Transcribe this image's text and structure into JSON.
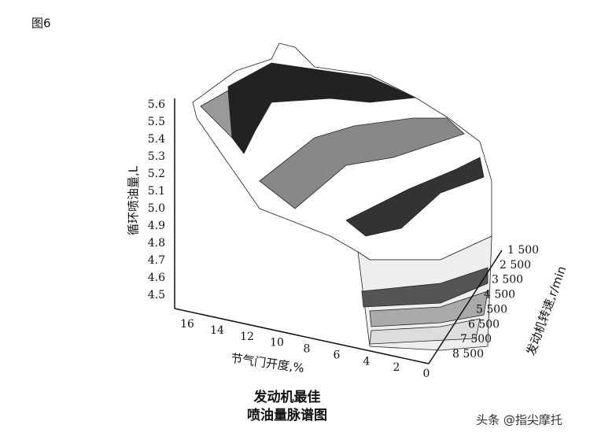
{
  "figure_label": "图6",
  "figure": {
    "z_axis": {
      "label": "循环喷油量,L",
      "ticks": [
        "5.6",
        "5.5",
        "5.4",
        "5.3",
        "5.2",
        "5.1",
        "5.0",
        "4.9",
        "4.8",
        "4.7",
        "4.6",
        "4.5"
      ]
    },
    "x_axis": {
      "label": "节气门开度,%",
      "ticks": [
        "16",
        "14",
        "12",
        "10",
        "8",
        "6",
        "4",
        "2",
        "0"
      ]
    },
    "y_axis": {
      "label": "发动机转速,r/min",
      "ticks": [
        "1 500",
        "2 500",
        "3 500",
        "4 500",
        "5 500",
        "6 500",
        "7 500",
        "8 500"
      ]
    }
  },
  "caption": [
    "发动机最佳",
    "喷油量脉谱图"
  ],
  "watermark": "头条 @指尖摩托"
}
